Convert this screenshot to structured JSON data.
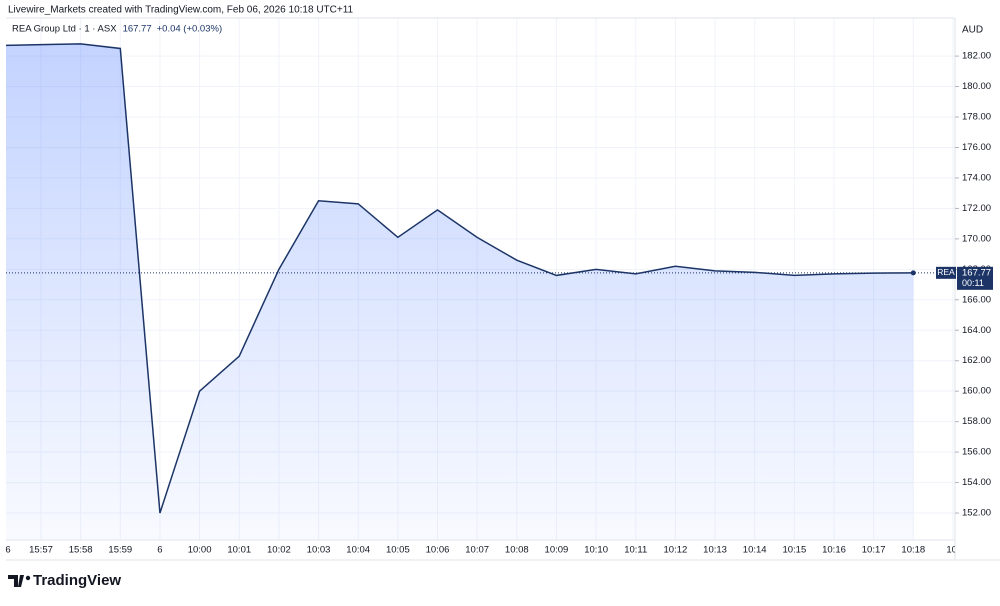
{
  "header": "Livewire_Markets created with TradingView.com, Feb 06, 2026 10:18 UTC+11",
  "brand": "TradingView",
  "chart_data": {
    "type": "line",
    "area": true,
    "legend_symbol": "REA Group Ltd · 1 · ASX",
    "legend_last": "167.77",
    "legend_change": "+0.04 (+0.03%)",
    "currency": "AUD",
    "ticker": "REA",
    "last_price": 167.77,
    "countdown": "00:11",
    "categories": [
      "6",
      "15:57",
      "15:58",
      "15:59",
      "6",
      "10:00",
      "10:01",
      "10:02",
      "10:03",
      "10:04",
      "10:05",
      "10:06",
      "10:07",
      "10:08",
      "10:09",
      "10:10",
      "10:11",
      "10:12",
      "10:13",
      "10:14",
      "10:15",
      "10:16",
      "10:17",
      "10:18",
      "10:"
    ],
    "series": [
      {
        "name": "REA",
        "color": "#1c3566",
        "values": [
          182.7,
          182.75,
          182.8,
          182.5,
          152.0,
          160.0,
          162.3,
          168.0,
          172.5,
          172.3,
          170.1,
          171.9,
          170.1,
          168.6,
          167.6,
          168.0,
          167.7,
          168.2,
          167.9,
          167.8,
          167.6,
          167.7,
          167.75,
          167.77,
          null
        ]
      }
    ],
    "ylim": [
      150.23,
      184.5
    ],
    "yticks": [
      {
        "value": 152,
        "label": "152.00"
      },
      {
        "value": 154,
        "label": "154.00"
      },
      {
        "value": 156,
        "label": "156.00"
      },
      {
        "value": 158,
        "label": "158.00"
      },
      {
        "value": 160,
        "label": "160.00"
      },
      {
        "value": 162,
        "label": "162.00"
      },
      {
        "value": 164,
        "label": "164.00"
      },
      {
        "value": 166,
        "label": "166.00"
      },
      {
        "value": 168,
        "label": "168.00"
      },
      {
        "value": 170,
        "label": "170.00"
      },
      {
        "value": 172,
        "label": "172.00"
      },
      {
        "value": 174,
        "label": "174.00"
      },
      {
        "value": 176,
        "label": "176.00"
      },
      {
        "value": 178,
        "label": "178.00"
      },
      {
        "value": 180,
        "label": "180.00"
      },
      {
        "value": 182,
        "label": "182.00"
      }
    ],
    "grid": true,
    "fill_color": "#2962ff"
  }
}
